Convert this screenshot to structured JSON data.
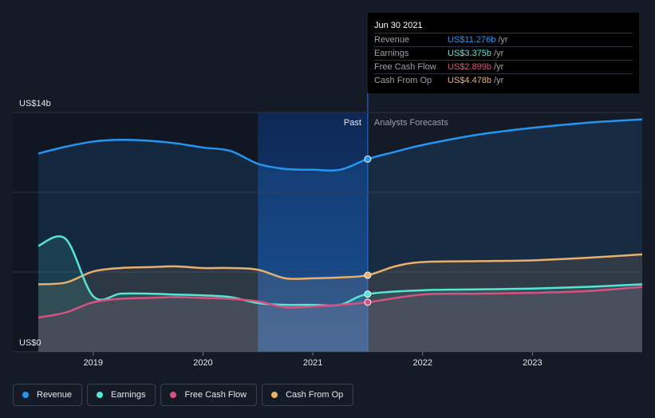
{
  "tooltip": {
    "date": "Jun 30 2021",
    "rows": [
      {
        "label": "Revenue",
        "value": "US$11.276b",
        "unit": "/yr",
        "color": "#2196f3"
      },
      {
        "label": "Earnings",
        "value": "US$3.375b",
        "unit": "/yr",
        "color": "#55e6d6"
      },
      {
        "label": "Free Cash Flow",
        "value": "US$2.899b",
        "unit": "/yr",
        "color": "#d8517f"
      },
      {
        "label": "Cash From Op",
        "value": "US$4.478b",
        "unit": "/yr",
        "color": "#e8b06a"
      }
    ]
  },
  "legend": [
    {
      "label": "Revenue",
      "color": "#2196f3"
    },
    {
      "label": "Earnings",
      "color": "#55e6d6"
    },
    {
      "label": "Free Cash Flow",
      "color": "#d8517f"
    },
    {
      "label": "Cash From Op",
      "color": "#e8b06a"
    }
  ],
  "chart_data": {
    "type": "area",
    "y_unit_label_top": "US$14b",
    "y_unit_label_bottom": "US$0",
    "ylim": [
      0,
      14
    ],
    "xlim": [
      2018.5,
      2024.0
    ],
    "x_ticks": [
      2019,
      2020,
      2021,
      2022,
      2023
    ],
    "x_tick_labels": [
      "2019",
      "2020",
      "2021",
      "2022",
      "2023"
    ],
    "past_label": "Past",
    "forecast_label": "Analysts Forecasts",
    "forecast_start": 2021.5,
    "highlight_range": [
      2020.5,
      2021.5
    ],
    "series": [
      {
        "name": "Revenue",
        "color": "#2196f3",
        "x": [
          2018.5,
          2018.75,
          2019.0,
          2019.25,
          2019.5,
          2019.75,
          2020.0,
          2020.25,
          2020.5,
          2020.75,
          2021.0,
          2021.25,
          2021.5,
          2021.75,
          2022.0,
          2022.5,
          2023.0,
          2023.5,
          2024.0
        ],
        "y": [
          11.6,
          12.0,
          12.3,
          12.4,
          12.35,
          12.2,
          11.95,
          11.75,
          11.0,
          10.7,
          10.65,
          10.65,
          11.276,
          11.7,
          12.1,
          12.7,
          13.1,
          13.4,
          13.6
        ]
      },
      {
        "name": "Earnings",
        "color": "#55e6d6",
        "x": [
          2018.5,
          2018.75,
          2019.0,
          2019.25,
          2019.5,
          2019.75,
          2020.0,
          2020.25,
          2020.5,
          2020.75,
          2021.0,
          2021.25,
          2021.5,
          2022.0,
          2022.5,
          2023.0,
          2023.5,
          2024.0
        ],
        "y": [
          6.2,
          6.6,
          3.25,
          3.4,
          3.4,
          3.35,
          3.3,
          3.2,
          2.85,
          2.75,
          2.75,
          2.75,
          3.375,
          3.6,
          3.65,
          3.7,
          3.8,
          3.95
        ]
      },
      {
        "name": "Free Cash Flow",
        "color": "#d8517f",
        "x": [
          2018.5,
          2018.75,
          2019.0,
          2019.25,
          2019.5,
          2019.75,
          2020.0,
          2020.25,
          2020.5,
          2020.75,
          2021.0,
          2021.25,
          2021.5,
          2022.0,
          2022.5,
          2023.0,
          2023.5,
          2024.0
        ],
        "y": [
          2.0,
          2.3,
          2.9,
          3.1,
          3.15,
          3.2,
          3.15,
          3.1,
          2.95,
          2.6,
          2.65,
          2.75,
          2.899,
          3.35,
          3.4,
          3.45,
          3.55,
          3.8
        ]
      },
      {
        "name": "Cash From Op",
        "color": "#e8b06a",
        "x": [
          2018.5,
          2018.75,
          2019.0,
          2019.25,
          2019.5,
          2019.75,
          2020.0,
          2020.25,
          2020.5,
          2020.75,
          2021.0,
          2021.25,
          2021.5,
          2021.75,
          2022.0,
          2022.5,
          2023.0,
          2023.5,
          2024.0
        ],
        "y": [
          3.95,
          4.05,
          4.7,
          4.9,
          4.95,
          5.0,
          4.9,
          4.9,
          4.8,
          4.3,
          4.3,
          4.35,
          4.478,
          5.0,
          5.25,
          5.3,
          5.35,
          5.5,
          5.7
        ]
      }
    ]
  }
}
